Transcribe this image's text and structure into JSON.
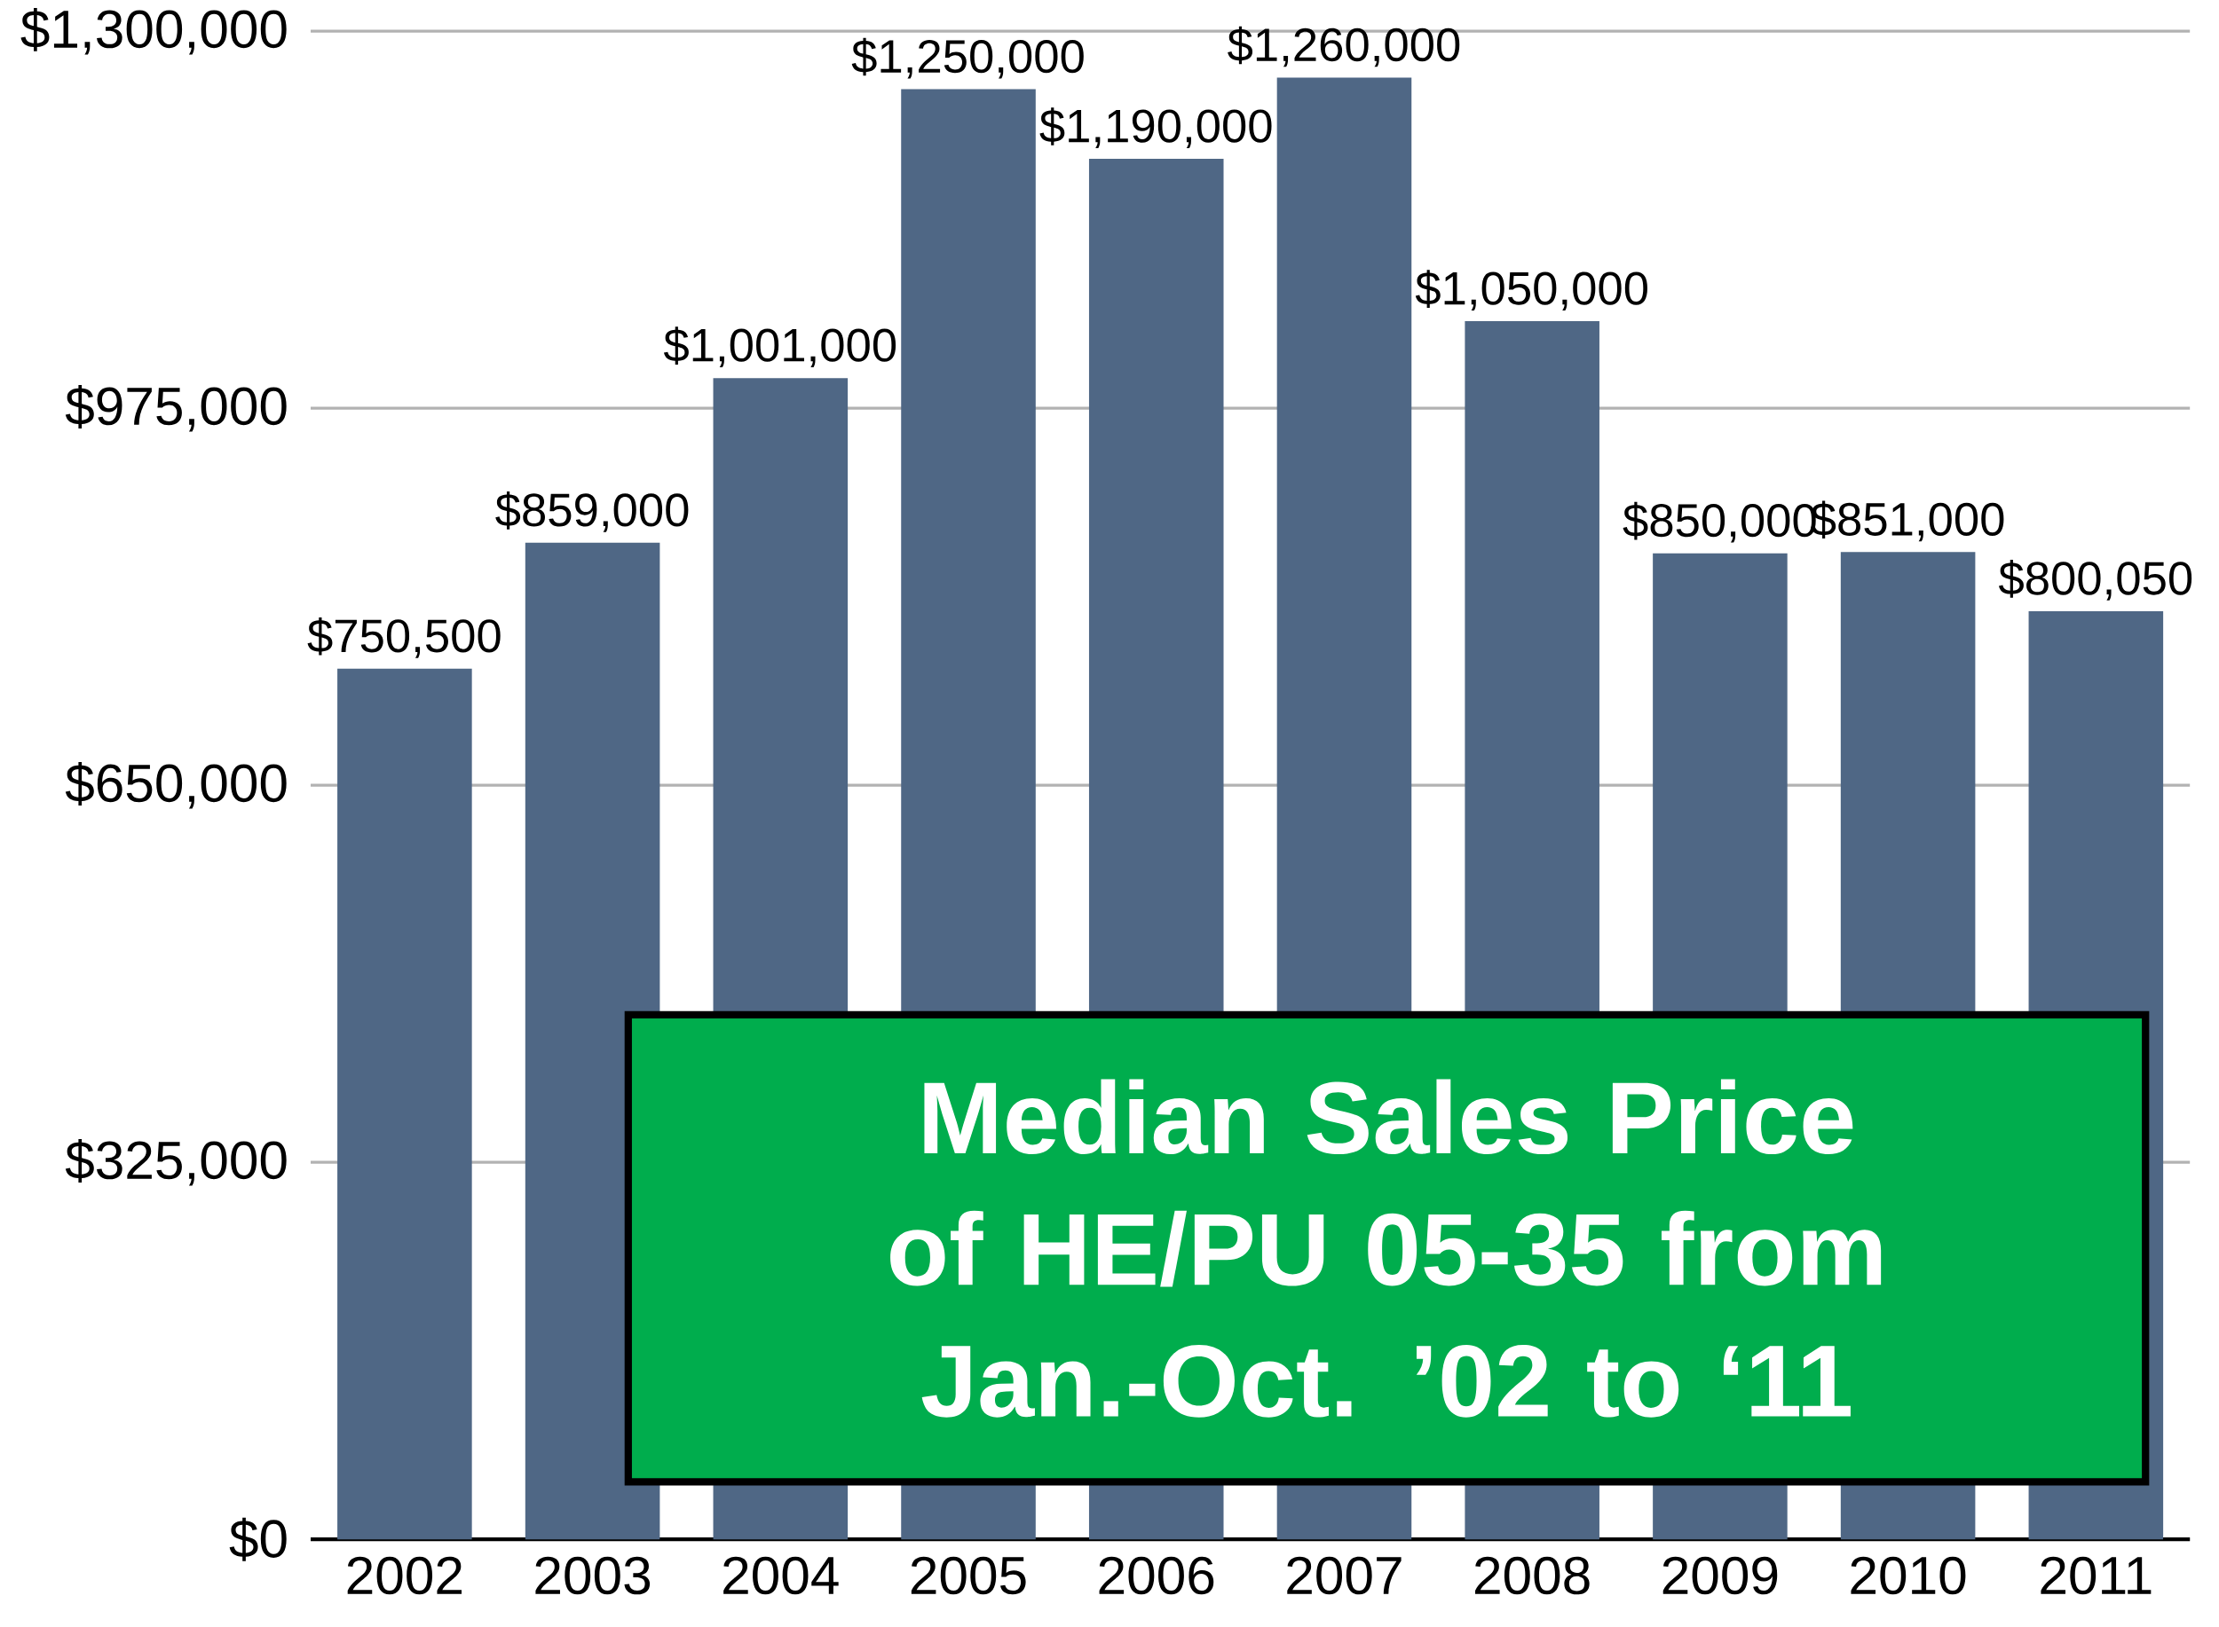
{
  "chart_data": {
    "type": "bar",
    "title": "Median Sales Price of HE/PU  05-35 from Jan.-Oct. ’02 to ‘11",
    "categories": [
      "2002",
      "2003",
      "2004",
      "2005",
      "2006",
      "2007",
      "2008",
      "2009",
      "2010",
      "2011"
    ],
    "values": [
      750500,
      859000,
      1001000,
      1250000,
      1190000,
      1260000,
      1050000,
      850000,
      851000,
      800050
    ],
    "value_labels": [
      "$750,500",
      "$859,000",
      "$1,001,000",
      "$1,250,000",
      "$1,190,000",
      "$1,260,000",
      "$1,050,000",
      "$850,000",
      "$851,000",
      "$800,050"
    ],
    "color": "#4f6785",
    "ylim": [
      0,
      1300000
    ],
    "yticks": [
      {
        "value": 0,
        "label": "$0"
      },
      {
        "value": 325000,
        "label": "$325,000"
      },
      {
        "value": 650000,
        "label": "$650,000"
      },
      {
        "value": 975000,
        "label": "$975,000"
      },
      {
        "value": 1300000,
        "label": "$1,300,000"
      }
    ],
    "grid": "y"
  }
}
